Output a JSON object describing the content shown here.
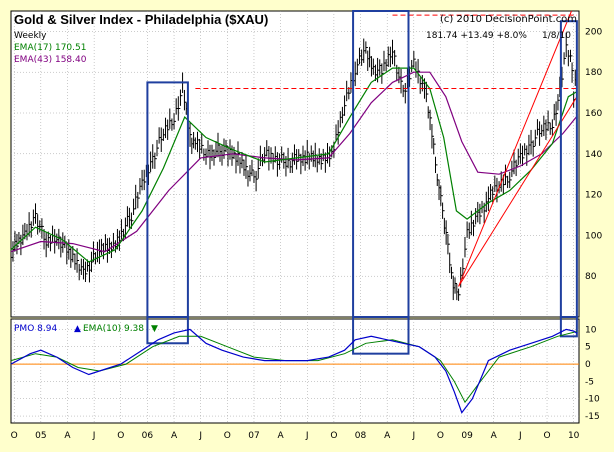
{
  "chart_data": [
    {
      "type": "line",
      "title": "Gold & Silver Index - Philadelphia ($XAU)",
      "copyright": "(c) 2010 DecisionPoint.com",
      "periodicity": "Weekly",
      "last_quote": "181.74  +13.49  +8.0%",
      "date": "1/8/10",
      "legend": [
        {
          "name": "EMA(17)",
          "value": "170.51",
          "color": "#008000"
        },
        {
          "name": "EMA(43)",
          "value": "158.40",
          "color": "#800080"
        }
      ],
      "colors": {
        "price": "#000000",
        "ema17": "#008000",
        "ema43": "#800080",
        "trend": "#ff0000",
        "box": "#1f3f9f",
        "background": "#ffffcc",
        "grid": "#808080"
      },
      "ylim": [
        60,
        210
      ],
      "yticks": [
        "200",
        "180",
        "160",
        "140",
        "120",
        "100",
        "80"
      ],
      "xticks": [
        "O",
        "05",
        "A",
        "J",
        "O",
        "06",
        "A",
        "J",
        "O",
        "07",
        "A",
        "J",
        "O",
        "08",
        "A",
        "J",
        "O",
        "09",
        "A",
        "J",
        "O",
        "10"
      ],
      "x_time_range": [
        2004.72,
        2010.05
      ],
      "price": {
        "x": [
          2004.72,
          2004.85,
          2004.95,
          2005.05,
          2005.15,
          2005.3,
          2005.4,
          2005.55,
          2005.7,
          2005.85,
          2005.95,
          2006.05,
          2006.15,
          2006.25,
          2006.33,
          2006.4,
          2006.45,
          2006.55,
          2006.7,
          2006.85,
          2007.0,
          2007.1,
          2007.3,
          2007.5,
          2007.65,
          2007.75,
          2007.85,
          2007.95,
          2008.05,
          2008.12,
          2008.2,
          2008.3,
          2008.4,
          2008.5,
          2008.6,
          2008.67,
          2008.72,
          2008.77,
          2008.82,
          2008.87,
          2008.92,
          2009.0,
          2009.1,
          2009.2,
          2009.3,
          2009.4,
          2009.5,
          2009.6,
          2009.7,
          2009.8,
          2009.87,
          2009.93,
          2009.97,
          2010.0,
          2010.03
        ],
        "y": [
          92,
          100,
          110,
          96,
          100,
          88,
          82,
          92,
          96,
          110,
          125,
          138,
          150,
          158,
          172,
          148,
          145,
          140,
          142,
          138,
          128,
          140,
          136,
          138,
          138,
          142,
          165,
          182,
          190,
          182,
          180,
          192,
          168,
          185,
          172,
          150,
          130,
          110,
          95,
          75,
          73,
          100,
          110,
          118,
          125,
          130,
          138,
          145,
          152,
          155,
          170,
          192,
          188,
          168,
          181.74
        ]
      },
      "ema17": {
        "x": [
          2004.72,
          2004.95,
          2005.2,
          2005.45,
          2005.7,
          2005.95,
          2006.15,
          2006.35,
          2006.55,
          2006.8,
          2007.1,
          2007.4,
          2007.7,
          2007.9,
          2008.1,
          2008.3,
          2008.5,
          2008.65,
          2008.78,
          2008.9,
          2009.0,
          2009.2,
          2009.4,
          2009.6,
          2009.8,
          2009.95,
          2010.03
        ],
        "y": [
          93,
          104,
          98,
          87,
          93,
          112,
          133,
          158,
          148,
          142,
          136,
          138,
          140,
          158,
          175,
          182,
          182,
          172,
          148,
          112,
          108,
          116,
          122,
          132,
          145,
          168,
          170.51
        ]
      },
      "ema43": {
        "x": [
          2004.72,
          2005.0,
          2005.3,
          2005.6,
          2005.9,
          2006.2,
          2006.5,
          2006.8,
          2007.1,
          2007.4,
          2007.7,
          2007.9,
          2008.1,
          2008.3,
          2008.5,
          2008.65,
          2008.8,
          2008.95,
          2009.1,
          2009.3,
          2009.5,
          2009.7,
          2009.9,
          2010.03
        ],
        "y": [
          92,
          97,
          96,
          92,
          102,
          122,
          138,
          140,
          138,
          137,
          138,
          150,
          165,
          175,
          180,
          180,
          168,
          146,
          131,
          130,
          134,
          140,
          150,
          158.4
        ]
      },
      "resistance_lines": [
        {
          "x": [
            2006.45,
            2010.03
          ],
          "y": [
            172,
            172
          ]
        },
        {
          "x": [
            2008.3,
            2010.03
          ],
          "y": [
            208,
            208
          ]
        }
      ],
      "trend_channel": [
        {
          "x": [
            2008.92,
            2009.98
          ],
          "y": [
            75,
            210
          ]
        },
        {
          "x": [
            2008.92,
            2010.03
          ],
          "y": [
            75,
            168
          ]
        }
      ],
      "highlight_boxes": [
        {
          "x": [
            2006.0,
            2006.38
          ],
          "y": [
            70,
            175
          ]
        },
        {
          "x": [
            2007.93,
            2008.45
          ],
          "y": [
            70,
            212
          ]
        },
        {
          "x": [
            2009.88,
            2010.03
          ],
          "y": [
            70,
            205
          ]
        }
      ]
    },
    {
      "type": "line",
      "title": "",
      "legend": [
        {
          "name": "PMO",
          "value": "8.94",
          "color": "#0000cc"
        },
        {
          "name": "EMA(10)",
          "value": "9.38",
          "color": "#008000"
        }
      ],
      "ylim": [
        -17,
        13
      ],
      "yticks": [
        "10",
        "5",
        "0",
        "-5",
        "-10",
        "-15"
      ],
      "zero_line_color": "#ff8000",
      "pmo": {
        "x": [
          2004.72,
          2004.9,
          2005.0,
          2005.15,
          2005.3,
          2005.45,
          2005.55,
          2005.75,
          2005.95,
          2006.1,
          2006.25,
          2006.4,
          2006.55,
          2006.7,
          2006.9,
          2007.1,
          2007.3,
          2007.5,
          2007.7,
          2007.85,
          2007.95,
          2008.1,
          2008.25,
          2008.4,
          2008.55,
          2008.7,
          2008.8,
          2008.88,
          2008.95,
          2009.05,
          2009.2,
          2009.4,
          2009.6,
          2009.8,
          2009.93,
          2010.0,
          2010.03
        ],
        "y": [
          0,
          3,
          4,
          2,
          -1,
          -3,
          -2,
          0,
          4,
          7,
          9,
          10,
          6,
          4,
          2,
          1,
          1,
          1,
          2,
          4,
          7,
          8,
          7,
          6,
          5,
          2,
          -2,
          -8,
          -14,
          -10,
          1,
          4,
          6,
          8,
          10,
          9.5,
          8.94
        ]
      },
      "pmo_ema": {
        "x": [
          2004.72,
          2004.95,
          2005.15,
          2005.35,
          2005.55,
          2005.8,
          2006.05,
          2006.3,
          2006.5,
          2006.75,
          2007.0,
          2007.3,
          2007.6,
          2007.85,
          2008.05,
          2008.3,
          2008.55,
          2008.75,
          2008.88,
          2008.98,
          2009.1,
          2009.3,
          2009.6,
          2009.85,
          2010.03
        ],
        "y": [
          1,
          3,
          2,
          -1,
          -2,
          0,
          5,
          8,
          8,
          5,
          2,
          1,
          1,
          3,
          6,
          7,
          5,
          1,
          -5,
          -11,
          -6,
          2,
          5,
          8,
          9.38
        ]
      },
      "highlight_boxes": [
        {
          "x": [
            2006.0,
            2006.38
          ],
          "y": [
            6,
            13
          ]
        },
        {
          "x": [
            2007.93,
            2008.45
          ],
          "y": [
            3,
            13
          ]
        },
        {
          "x": [
            2009.88,
            2010.03
          ],
          "y": [
            8,
            13
          ]
        }
      ]
    }
  ]
}
